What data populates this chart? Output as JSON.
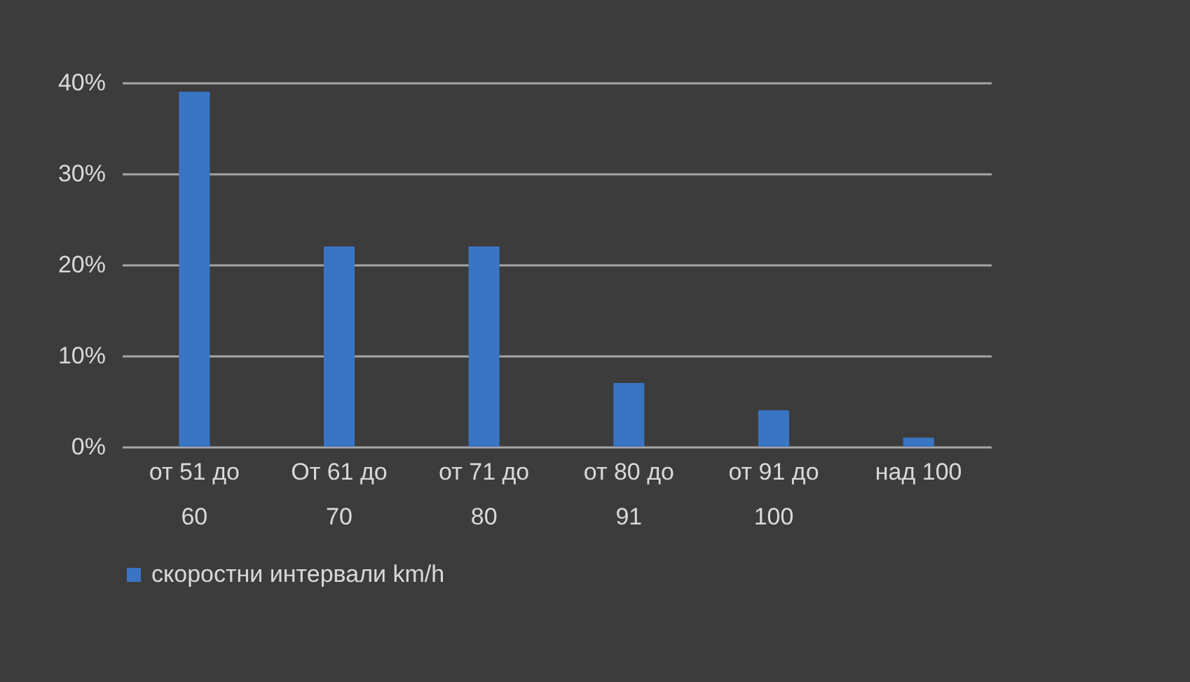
{
  "chart_data": {
    "type": "bar",
    "categories": [
      "от 51 до 60",
      "От 61 до 70",
      "от 71 до 80",
      "от 80 до 91",
      "от 91 до 100",
      "над 100"
    ],
    "series": [
      {
        "name": "скоростни интервали km/h",
        "color": "#3a75c4",
        "values": [
          39,
          22,
          22,
          7,
          4,
          1
        ]
      }
    ],
    "ylim": [
      0,
      40
    ],
    "yticks": [
      {
        "value": 0,
        "label": "0%"
      },
      {
        "value": 10,
        "label": "10%"
      },
      {
        "value": 20,
        "label": "20%"
      },
      {
        "value": 30,
        "label": "30%"
      },
      {
        "value": 40,
        "label": "40%"
      }
    ],
    "grid": "y",
    "legend": "bottom"
  }
}
